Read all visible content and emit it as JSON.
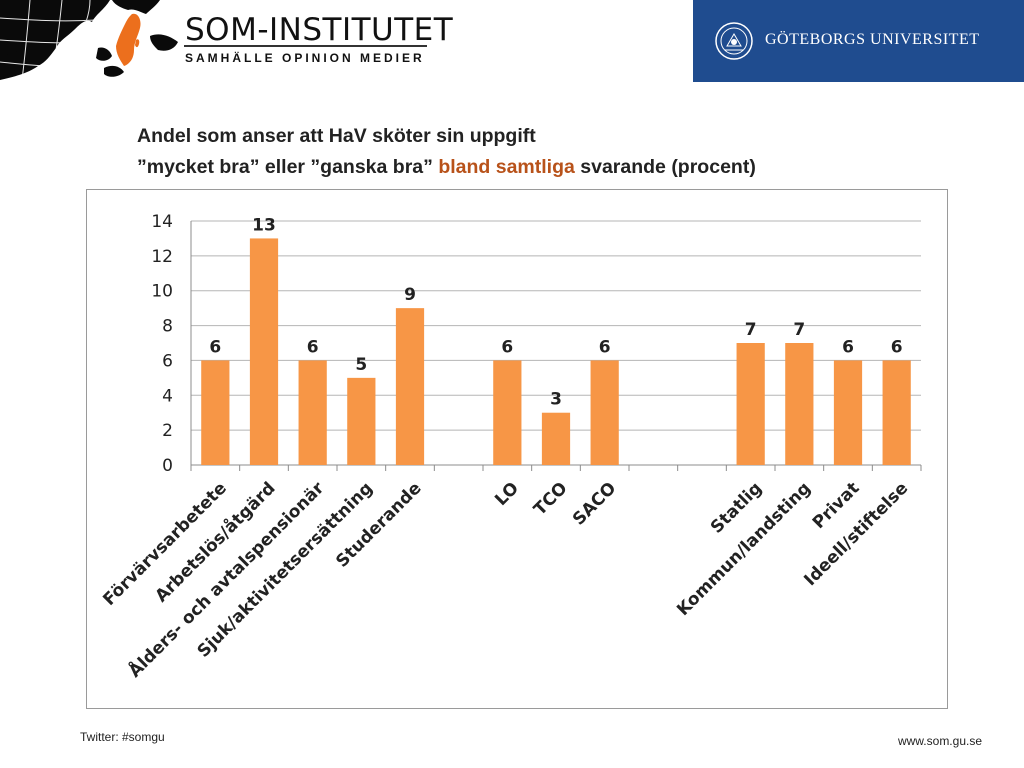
{
  "header": {
    "som_name": "SOM-INSTITUTET",
    "som_tagline": "SAMHÄLLE OPINION MEDIER",
    "university_name": "GÖTEBORGS UNIVERSITET",
    "colors": {
      "banner": "#1f4c8f",
      "accent": "#b8521a",
      "bars": "#f79646"
    },
    "icons": [
      "nordic-map-icon",
      "university-seal-icon"
    ]
  },
  "title": {
    "line1": "Andel som anser att HaV sköter sin uppgift",
    "line2_start": "”mycket bra” eller ”ganska bra” ",
    "line2_highlight": "bland samtliga",
    "line2_end": " svarande (procent)"
  },
  "chart_data": {
    "type": "bar",
    "title": "",
    "xlabel": "",
    "ylabel": "",
    "ylim": [
      0,
      14
    ],
    "yticks": [
      0,
      2,
      4,
      6,
      8,
      10,
      12,
      14
    ],
    "grid": true,
    "legend": "none",
    "categories": [
      "Förvärvsarbetete",
      "Arbetslös/åtgärd",
      "Ålders- och avtalspensionär",
      "Sjuk/aktivitetsersättning",
      "Studerande",
      "",
      "LO",
      "TCO",
      "SACO",
      "",
      "",
      "Statlig",
      "Kommun/landsting",
      "Privat",
      "Ideell/stiftelse"
    ],
    "values": [
      6,
      13,
      6,
      5,
      9,
      null,
      6,
      3,
      6,
      null,
      null,
      7,
      7,
      6,
      6
    ],
    "data_labels": [
      "6",
      "13",
      "6",
      "5",
      "9",
      "",
      "6",
      "3",
      "6",
      "",
      "",
      "7",
      "7",
      "6",
      "6"
    ]
  },
  "footer": {
    "twitter": "Twitter: #somgu",
    "website": "www.som.gu.se"
  }
}
